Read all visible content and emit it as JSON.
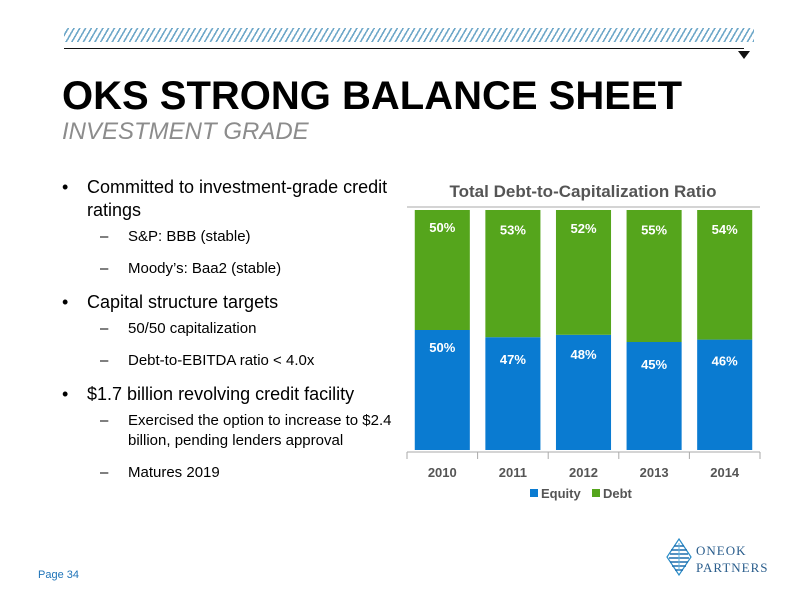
{
  "header": {
    "title": "OKS STRONG BALANCE SHEET",
    "subtitle": "INVESTMENT GRADE"
  },
  "bullets": [
    {
      "text": "Committed to investment-grade credit ratings",
      "subs": [
        "S&P:  BBB (stable)",
        "Moody’s:  Baa2 (stable)"
      ]
    },
    {
      "text": "Capital structure targets",
      "subs": [
        "50/50 capitalization",
        "Debt-to-EBITDA ratio < 4.0x"
      ]
    },
    {
      "text": "$1.7 billion revolving credit facility",
      "subs": [
        "Exercised the option to increase to $2.4 billion, pending lenders approval",
        "Matures 2019"
      ]
    }
  ],
  "footer": {
    "page": "Page 34",
    "logo_line1": "ONEOK",
    "logo_line2": "PARTNERS"
  },
  "chart_data": {
    "type": "bar",
    "stacked": true,
    "title": "Total Debt-to-Capitalization Ratio",
    "categories": [
      "2010",
      "2011",
      "2012",
      "2013",
      "2014"
    ],
    "series": [
      {
        "name": "Equity",
        "values": [
          50,
          47,
          48,
          45,
          46
        ],
        "labels": [
          "50%",
          "47%",
          "48%",
          "45%",
          "46%"
        ],
        "color": "#0a7bd1"
      },
      {
        "name": "Debt",
        "values": [
          50,
          53,
          52,
          55,
          54
        ],
        "labels": [
          "50%",
          "53%",
          "52%",
          "55%",
          "54%"
        ],
        "color": "#55a51c"
      }
    ],
    "ylim": [
      0,
      100
    ],
    "legend": "bottom"
  }
}
